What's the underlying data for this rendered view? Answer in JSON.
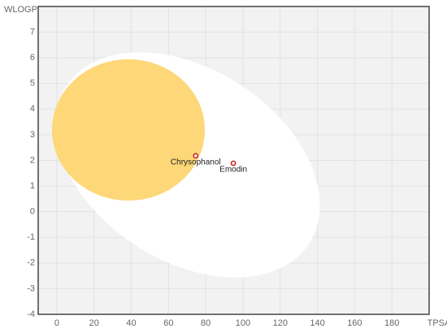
{
  "chart_data": {
    "type": "scatter",
    "x_label": "TPSA",
    "y_label": "WLOGP",
    "labels": [
      "Chrysophanol",
      "Emodin"
    ],
    "x": [
      74.6,
      94.83
    ],
    "values": [
      2.18,
      1.89
    ],
    "color": "#cc2222",
    "xlim": [
      -10,
      200
    ],
    "xticks": [
      0,
      20,
      40,
      60,
      80,
      100,
      120,
      140,
      160,
      180
    ],
    "ylim": [
      -4,
      8
    ],
    "yticks": [
      -4,
      -3,
      -2,
      -1,
      0,
      1,
      2,
      3,
      4,
      5,
      6,
      7
    ],
    "grid": true
  }
}
